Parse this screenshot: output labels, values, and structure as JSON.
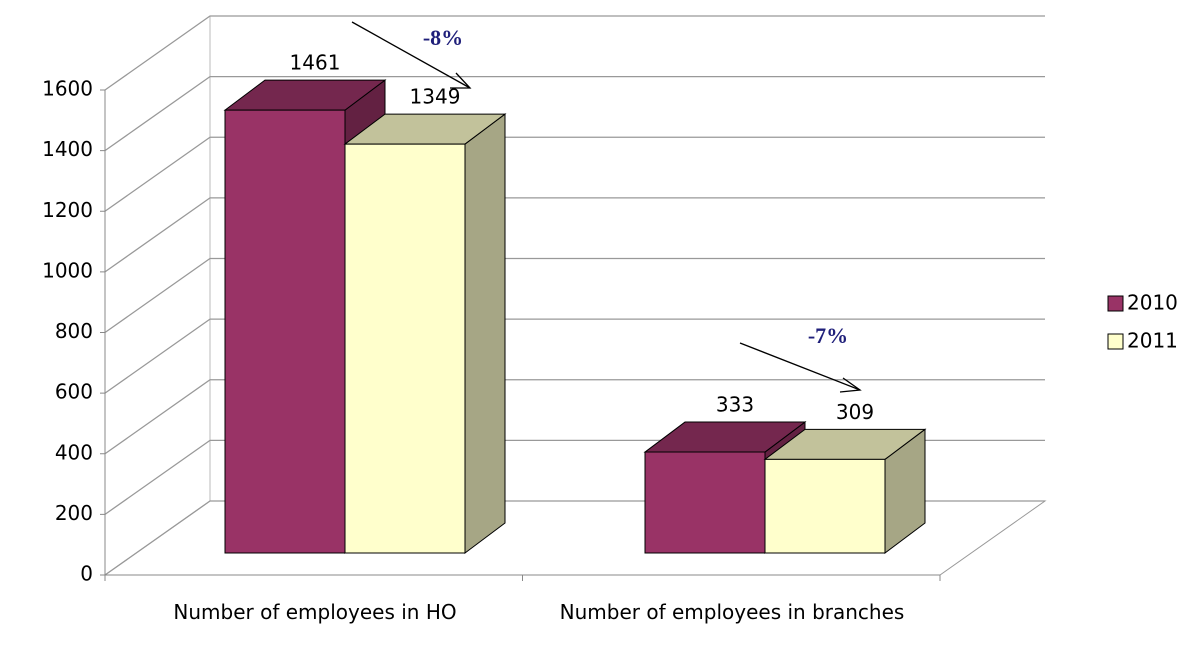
{
  "chart_data": {
    "type": "bar3d",
    "categories": [
      "Number of employees in HO",
      "Number of employees in branches"
    ],
    "series": [
      {
        "name": "2010",
        "color": "#993366",
        "values": [
          1461,
          333
        ]
      },
      {
        "name": "2011",
        "color": "#ffffcc",
        "values": [
          1349,
          309
        ]
      }
    ],
    "ylim": [
      0,
      1600
    ],
    "yticks": [
      0,
      200,
      400,
      600,
      800,
      1000,
      1200,
      1400,
      1600
    ],
    "grid": true,
    "legend": "right",
    "annotations": [
      "-8%",
      "-7%"
    ]
  }
}
